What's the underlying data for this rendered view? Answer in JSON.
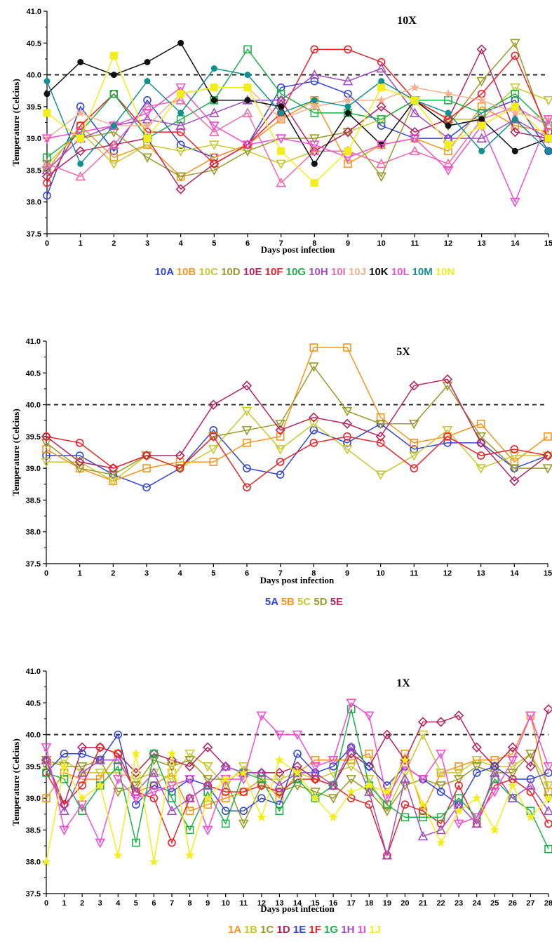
{
  "chart_data": [
    {
      "type": "line",
      "title": "10X",
      "xlabel": "Days post infection",
      "ylabel": "Temperature (Celcius)",
      "xlim": [
        0,
        15
      ],
      "ylim": [
        37.5,
        41.0
      ],
      "xticks": [
        0,
        1,
        2,
        3,
        4,
        5,
        6,
        7,
        8,
        9,
        10,
        11,
        12,
        13,
        14,
        15
      ],
      "yticks": [
        37.5,
        38.0,
        38.5,
        39.0,
        39.5,
        40.0,
        40.5,
        41.0
      ],
      "reference_line": 40.0,
      "legend_position": "bottom",
      "series": [
        {
          "name": "10A",
          "color": "#3346d6",
          "marker": "circle",
          "values": [
            38.1,
            39.5,
            38.8,
            39.6,
            38.9,
            38.7,
            38.9,
            39.8,
            39.9,
            39.7,
            39.2,
            39.0,
            39.0,
            39.4,
            39.6,
            38.8
          ]
        },
        {
          "name": "10B",
          "color": "#f7941d",
          "marker": "square",
          "values": [
            38.5,
            39.2,
            38.7,
            38.9,
            38.4,
            38.7,
            38.9,
            39.3,
            39.6,
            38.6,
            38.9,
            39.0,
            38.8,
            39.5,
            39.2,
            39.1
          ]
        },
        {
          "name": "10C",
          "color": "#c8c832",
          "marker": "triangle-down",
          "values": [
            38.6,
            39.1,
            38.6,
            38.9,
            38.8,
            38.9,
            38.8,
            38.6,
            38.8,
            39.1,
            39.3,
            39.6,
            39.3,
            39.3,
            39.8,
            39.6
          ]
        },
        {
          "name": "10D",
          "color": "#9a9a2a",
          "marker": "triangle-down",
          "values": [
            38.5,
            39.0,
            39.1,
            38.7,
            38.4,
            38.5,
            38.8,
            39.0,
            39.0,
            39.1,
            38.4,
            39.6,
            39.2,
            39.9,
            40.5,
            39.0
          ]
        },
        {
          "name": "10E",
          "color": "#b5245f",
          "marker": "diamond",
          "values": [
            38.4,
            38.8,
            38.9,
            39.0,
            38.2,
            38.6,
            38.9,
            39.6,
            38.8,
            39.1,
            39.5,
            39.1,
            39.3,
            40.4,
            39.1,
            39.0
          ]
        },
        {
          "name": "10F",
          "color": "#e8232a",
          "marker": "circle",
          "values": [
            38.3,
            39.2,
            39.7,
            39.1,
            39.1,
            38.6,
            38.9,
            39.4,
            40.4,
            40.4,
            40.2,
            39.6,
            39.3,
            39.7,
            40.3,
            39.1
          ]
        },
        {
          "name": "10G",
          "color": "#1fb04a",
          "marker": "square",
          "values": [
            38.7,
            39.1,
            39.7,
            39.0,
            39.3,
            39.6,
            40.4,
            39.7,
            39.4,
            39.4,
            39.3,
            39.6,
            39.6,
            39.4,
            39.7,
            39.2
          ]
        },
        {
          "name": "10H",
          "color": "#a24dbf",
          "marker": "triangle",
          "values": [
            38.5,
            39.0,
            39.2,
            39.3,
            39.2,
            39.4,
            39.6,
            39.6,
            40.0,
            39.9,
            40.1,
            39.4,
            39.0,
            39.0,
            39.3,
            39.0
          ]
        },
        {
          "name": "10I",
          "color": "#f06aa8",
          "marker": "triangle",
          "values": [
            38.6,
            38.4,
            38.9,
            39.5,
            39.6,
            39.1,
            39.4,
            38.3,
            38.8,
            38.8,
            38.6,
            38.8,
            38.6,
            39.3,
            39.5,
            39.2
          ]
        },
        {
          "name": "10J",
          "color": "#f5b090",
          "marker": "star",
          "values": [
            39.0,
            39.4,
            39.2,
            39.2,
            39.7,
            39.8,
            39.8,
            39.3,
            39.5,
            39.6,
            39.6,
            39.8,
            39.7,
            39.6,
            39.4,
            39.3
          ]
        },
        {
          "name": "10K",
          "color": "#111111",
          "marker": "dot",
          "values": [
            39.7,
            40.2,
            40.0,
            40.2,
            40.5,
            39.6,
            39.6,
            39.5,
            38.6,
            39.4,
            38.9,
            39.6,
            39.2,
            39.3,
            38.8,
            39.0
          ]
        },
        {
          "name": "10L",
          "color": "#f04fd0",
          "marker": "triangle-down",
          "values": [
            39.0,
            39.1,
            39.2,
            39.4,
            39.8,
            39.2,
            38.9,
            39.0,
            38.9,
            38.7,
            38.9,
            39.0,
            38.5,
            39.2,
            38.0,
            39.3
          ]
        },
        {
          "name": "10M",
          "color": "#12908f",
          "marker": "dot",
          "values": [
            39.9,
            38.6,
            39.2,
            39.9,
            39.4,
            40.1,
            40.0,
            39.4,
            39.6,
            39.5,
            39.9,
            39.6,
            39.4,
            38.8,
            39.3,
            38.8
          ]
        },
        {
          "name": "10N",
          "color": "#f3ee1b",
          "marker": "square-filled",
          "values": [
            39.4,
            39.0,
            40.3,
            39.0,
            39.7,
            39.8,
            39.8,
            38.8,
            38.3,
            38.8,
            39.8,
            39.6,
            38.9,
            39.2,
            39.5,
            39.0
          ]
        }
      ]
    },
    {
      "type": "line",
      "title": "5X",
      "xlabel": "Days post infection",
      "ylabel": "Temperature (Celcius)",
      "xlim": [
        0,
        15
      ],
      "ylim": [
        37.5,
        41.0
      ],
      "xticks": [
        0,
        1,
        2,
        3,
        4,
        5,
        6,
        7,
        8,
        9,
        10,
        11,
        12,
        13,
        14,
        15
      ],
      "yticks": [
        37.5,
        38.0,
        38.5,
        39.0,
        39.5,
        40.0,
        40.5,
        41.0
      ],
      "reference_line": 40.0,
      "legend_position": "bottom",
      "series": [
        {
          "name": "5A",
          "color": "#3346d6",
          "marker": "circle",
          "values": [
            39.2,
            39.2,
            38.9,
            38.7,
            39.0,
            39.6,
            39.0,
            38.9,
            39.6,
            39.4,
            39.7,
            39.3,
            39.4,
            39.4,
            39.0,
            39.2
          ]
        },
        {
          "name": "5B",
          "color": "#f7941d",
          "marker": "square",
          "values": [
            39.3,
            39.0,
            38.8,
            39.0,
            39.1,
            39.1,
            39.4,
            39.5,
            40.9,
            40.9,
            39.8,
            39.4,
            39.5,
            39.7,
            39.1,
            39.5
          ]
        },
        {
          "name": "5C",
          "color": "#c8c832",
          "marker": "triangle-down",
          "values": [
            39.1,
            39.1,
            38.8,
            39.2,
            39.0,
            39.3,
            39.9,
            39.3,
            39.7,
            39.3,
            38.9,
            39.2,
            39.6,
            39.0,
            39.2,
            39.2
          ]
        },
        {
          "name": "5D",
          "color": "#9a9a2a",
          "marker": "triangle-down",
          "values": [
            39.4,
            39.0,
            38.9,
            39.2,
            39.0,
            39.5,
            39.6,
            39.7,
            40.6,
            39.9,
            39.7,
            39.7,
            40.3,
            39.5,
            39.0,
            39.0
          ]
        },
        {
          "name": "5E",
          "color": "#b5245f",
          "marker": "diamond",
          "values": [
            39.5,
            39.1,
            39.0,
            39.2,
            39.2,
            40.0,
            40.3,
            39.6,
            39.8,
            39.7,
            39.5,
            40.3,
            40.4,
            39.4,
            38.8,
            39.2
          ]
        },
        {
          "name": "",
          "color": "#e8232a",
          "marker": "circle",
          "values": [
            39.5,
            39.4,
            39.0,
            39.2,
            39.0,
            39.5,
            38.7,
            39.1,
            39.4,
            39.5,
            39.4,
            39.0,
            39.5,
            39.2,
            39.3,
            39.2
          ]
        }
      ]
    },
    {
      "type": "line",
      "title": "1X",
      "xlabel": "Days post infection",
      "ylabel": "Temperature (Celcius)",
      "xlim": [
        0,
        28
      ],
      "ylim": [
        37.5,
        41.0
      ],
      "xticks": [
        0,
        1,
        2,
        3,
        4,
        5,
        6,
        7,
        8,
        9,
        10,
        11,
        12,
        13,
        14,
        15,
        16,
        17,
        18,
        19,
        20,
        21,
        22,
        23,
        24,
        25,
        26,
        27,
        28
      ],
      "yticks": [
        37.5,
        38.0,
        38.5,
        39.0,
        39.5,
        40.0,
        40.5,
        41.0
      ],
      "reference_line": 40.0,
      "legend_position": "bottom",
      "series": [
        {
          "name": "1A",
          "color": "#f7941d",
          "marker": "square",
          "values": [
            39.0,
            39.4,
            39.3,
            39.3,
            39.7,
            39.1,
            39.2,
            39.4,
            38.8,
            38.9,
            39.0,
            39.1,
            39.3,
            39.0,
            39.4,
            39.6,
            39.6,
            39.6,
            39.7,
            38.9,
            39.7,
            38.8,
            39.4,
            39.5,
            39.6,
            39.6,
            39.7,
            40.3,
            39.1
          ]
        },
        {
          "name": "1B",
          "color": "#c8c832",
          "marker": "triangle-down",
          "values": [
            39.5,
            39.6,
            39.4,
            39.4,
            39.4,
            39.3,
            39.4,
            39.3,
            39.7,
            39.5,
            39.2,
            39.5,
            39.3,
            39.3,
            39.4,
            39.3,
            39.4,
            39.5,
            39.3,
            38.8,
            39.4,
            40.0,
            39.4,
            39.4,
            39.6,
            39.5,
            39.5,
            39.7,
            39.2
          ]
        },
        {
          "name": "1C",
          "color": "#9a9a2a",
          "marker": "triangle-down",
          "values": [
            39.6,
            39.5,
            39.5,
            39.6,
            39.1,
            39.2,
            39.6,
            39.5,
            39.6,
            39.3,
            39.3,
            38.6,
            39.2,
            39.1,
            39.2,
            39.1,
            39.0,
            39.3,
            39.1,
            38.8,
            39.2,
            39.3,
            39.2,
            39.3,
            39.5,
            39.4,
            39.4,
            39.7,
            39.0
          ]
        },
        {
          "name": "1D",
          "color": "#b5245f",
          "marker": "diamond",
          "values": [
            39.6,
            38.9,
            39.8,
            39.8,
            39.7,
            39.4,
            39.7,
            39.6,
            39.5,
            39.8,
            39.5,
            39.4,
            39.4,
            39.4,
            39.5,
            39.3,
            39.2,
            39.7,
            39.5,
            40.0,
            39.6,
            40.2,
            40.2,
            40.3,
            39.8,
            39.5,
            39.8,
            39.5,
            40.4
          ]
        },
        {
          "name": "1E",
          "color": "#3346d6",
          "marker": "circle",
          "values": [
            39.4,
            39.7,
            39.7,
            39.6,
            40.0,
            38.9,
            39.2,
            39.1,
            39.3,
            39.2,
            38.8,
            38.8,
            39.0,
            38.9,
            39.7,
            39.4,
            39.5,
            39.8,
            39.5,
            39.2,
            39.5,
            39.3,
            39.1,
            38.9,
            39.4,
            39.5,
            39.3,
            39.3,
            39.4
          ]
        },
        {
          "name": "1F",
          "color": "#e8232a",
          "marker": "circle",
          "values": [
            39.4,
            38.9,
            39.2,
            39.8,
            39.7,
            39.1,
            39.0,
            38.3,
            39.0,
            39.2,
            39.1,
            39.1,
            39.2,
            39.1,
            39.3,
            39.3,
            39.2,
            39.0,
            38.9,
            38.1,
            38.9,
            38.8,
            38.6,
            39.2,
            38.6,
            39.2,
            39.3,
            39.1,
            38.6
          ]
        },
        {
          "name": "1G",
          "color": "#1fb04a",
          "marker": "square",
          "values": [
            39.4,
            39.3,
            38.8,
            39.2,
            39.5,
            38.3,
            39.7,
            39.0,
            38.5,
            39.1,
            38.6,
            39.4,
            39.3,
            38.8,
            39.3,
            39.0,
            39.2,
            40.4,
            39.2,
            38.9,
            38.7,
            38.7,
            38.7,
            39.0,
            38.7,
            39.3,
            39.0,
            38.8,
            38.2
          ]
        },
        {
          "name": "1H",
          "color": "#a24dbf",
          "marker": "triangle",
          "values": [
            39.6,
            38.8,
            39.4,
            39.6,
            39.6,
            39.1,
            39.4,
            38.8,
            39.0,
            39.2,
            39.5,
            39.4,
            39.4,
            39.2,
            39.4,
            39.4,
            39.2,
            39.8,
            39.1,
            38.1,
            39.3,
            38.4,
            38.5,
            38.9,
            38.6,
            39.4,
            39.0,
            39.2,
            38.8
          ]
        },
        {
          "name": "1I",
          "color": "#f04fd0",
          "marker": "triangle-down",
          "values": [
            39.8,
            38.5,
            38.9,
            38.3,
            39.3,
            39.0,
            39.1,
            39.2,
            39.3,
            38.5,
            39.3,
            39.3,
            40.3,
            40.0,
            40.0,
            39.5,
            39.6,
            40.5,
            40.3,
            39.0,
            39.5,
            39.3,
            39.7,
            38.6,
            38.7,
            39.1,
            39.6,
            40.3,
            39.5
          ]
        },
        {
          "name": "1J",
          "color": "#f3ee1b",
          "marker": "star",
          "values": [
            38.0,
            39.5,
            39.0,
            39.2,
            38.1,
            39.7,
            38.0,
            39.7,
            38.1,
            39.0,
            39.3,
            39.4,
            38.7,
            39.6,
            39.4,
            39.0,
            38.7,
            39.1,
            39.2,
            39.1,
            39.6,
            38.9,
            38.3,
            38.8,
            39.0,
            38.5,
            39.2,
            38.7,
            39.0
          ]
        }
      ]
    }
  ]
}
